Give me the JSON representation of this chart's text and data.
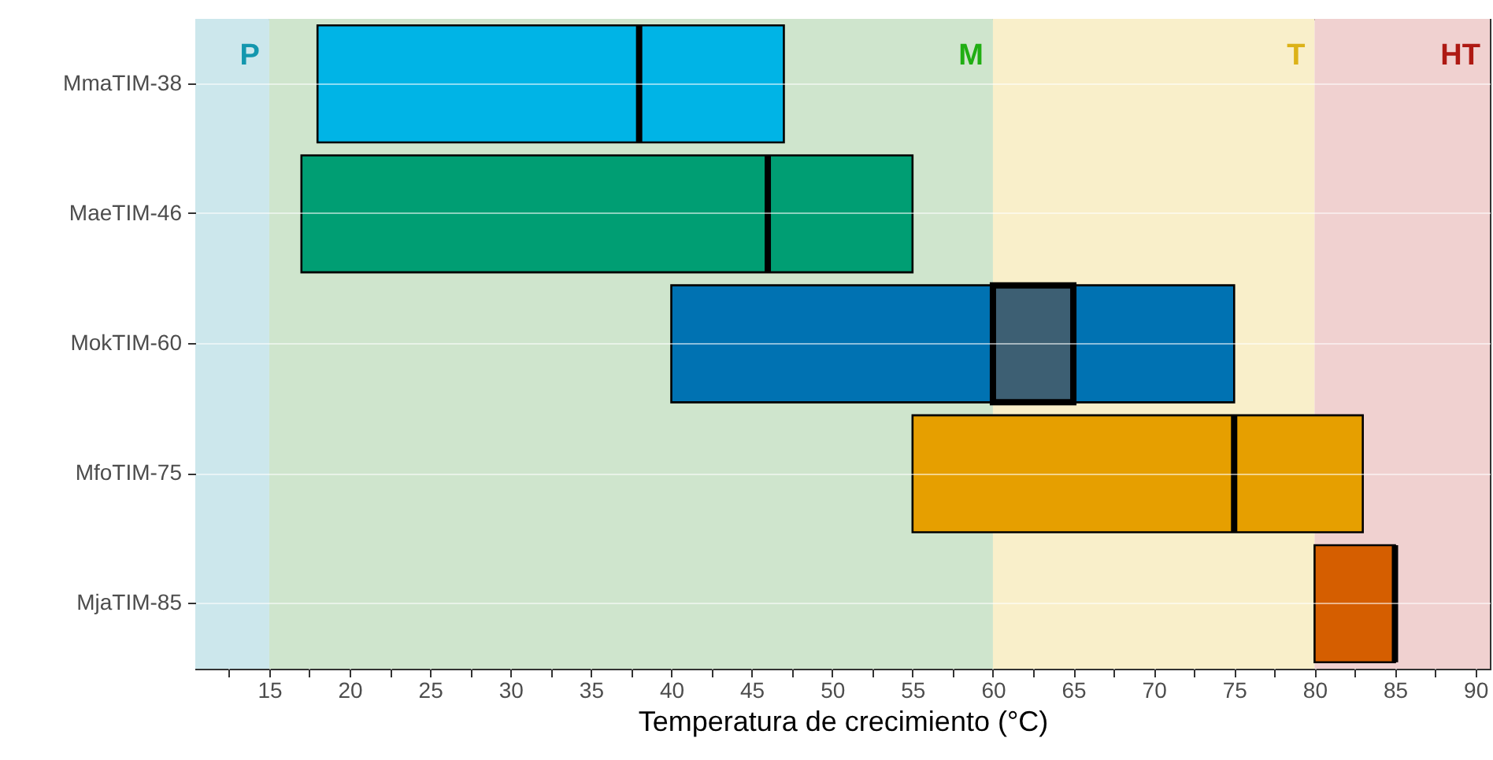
{
  "chart_data": {
    "type": "bar",
    "orientation": "horizontal",
    "xlabel": "Temperatura de crecimiento (°C)",
    "categories": [
      "MmaTIM-38",
      "MaeTIM-46",
      "MokTIM-60",
      "MfoTIM-75",
      "MjaTIM-85"
    ],
    "series": [
      {
        "type": "bar",
        "base": [
          18,
          17,
          40,
          55,
          80
        ],
        "values": [
          29,
          38,
          35,
          28,
          5
        ],
        "colors": [
          "#00b4e6",
          "#009e73",
          "#0072b2",
          "#e69f00",
          "#d55e00"
        ]
      },
      {
        "type": "bar",
        "base": [
          38,
          46,
          60,
          75,
          85
        ],
        "values": [
          0,
          0,
          5,
          0,
          0
        ],
        "colors": [
          "#000000",
          "#000000",
          "#3d5f73",
          "#000000",
          "#000000"
        ]
      }
    ],
    "xlim": [
      10.4,
      90.9
    ],
    "xticks": [
      {
        "value": 12.5,
        "label": null
      },
      15,
      {
        "value": 17.5,
        "label": null
      },
      20,
      {
        "value": 22.5,
        "label": null
      },
      25,
      {
        "value": 27.5,
        "label": null
      },
      30,
      {
        "value": 32.5,
        "label": null
      },
      35,
      {
        "value": 37.5,
        "label": null
      },
      40,
      {
        "value": 42.5,
        "label": null
      },
      45,
      {
        "value": 47.5,
        "label": null
      },
      50,
      {
        "value": 52.5,
        "label": null
      },
      55,
      {
        "value": 57.5,
        "label": null
      },
      60,
      {
        "value": 62.5,
        "label": null
      },
      65,
      {
        "value": 67.5,
        "label": null
      },
      70,
      {
        "value": 72.5,
        "label": null
      },
      75,
      {
        "value": 77.5,
        "label": null
      },
      80,
      {
        "value": 82.5,
        "label": null
      },
      85,
      {
        "value": 87.5,
        "label": null
      },
      90
    ],
    "bands": [
      {
        "axis": "x",
        "from": 10.4,
        "to": 15,
        "label": "P",
        "color": "#cce7ec"
      },
      {
        "axis": "x",
        "from": 15,
        "to": 60,
        "label": "M",
        "color": "#cfe5cd"
      },
      {
        "axis": "x",
        "from": 60,
        "to": 80,
        "label": "T",
        "color": "#f9efca"
      },
      {
        "axis": "x",
        "from": 80,
        "to": 90.9,
        "label": "HT",
        "color": "#f0d1d0"
      }
    ],
    "grid": true
  }
}
